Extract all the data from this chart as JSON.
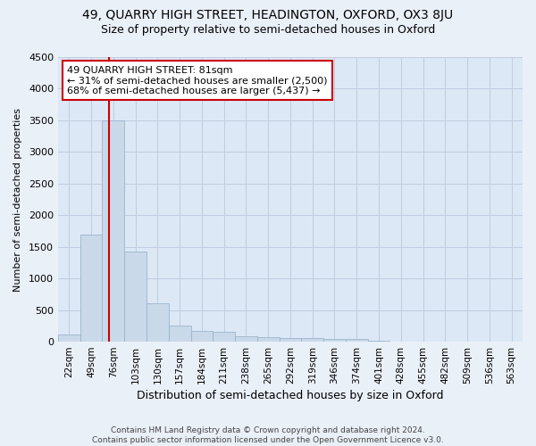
{
  "title1": "49, QUARRY HIGH STREET, HEADINGTON, OXFORD, OX3 8JU",
  "title2": "Size of property relative to semi-detached houses in Oxford",
  "xlabel": "Distribution of semi-detached houses by size in Oxford",
  "ylabel": "Number of semi-detached properties",
  "footer1": "Contains HM Land Registry data © Crown copyright and database right 2024.",
  "footer2": "Contains public sector information licensed under the Open Government Licence v3.0.",
  "annotation_line1": "49 QUARRY HIGH STREET: 81sqm",
  "annotation_line2": "← 31% of semi-detached houses are smaller (2,500)",
  "annotation_line3": "68% of semi-detached houses are larger (5,437) →",
  "bar_color": "#c9d9ea",
  "bar_edge_color": "#9ab4cc",
  "grid_color": "#c0cce0",
  "background_color": "#eaf0f8",
  "plot_bg_color": "#dce8f5",
  "red_line_color": "#cc0000",
  "annotation_box_color": "#ffffff",
  "annotation_box_edge": "#cc0000",
  "categories": [
    "22sqm",
    "49sqm",
    "76sqm",
    "103sqm",
    "130sqm",
    "157sqm",
    "184sqm",
    "211sqm",
    "238sqm",
    "265sqm",
    "292sqm",
    "319sqm",
    "346sqm",
    "374sqm",
    "401sqm",
    "428sqm",
    "455sqm",
    "482sqm",
    "509sqm",
    "536sqm",
    "563sqm"
  ],
  "values": [
    120,
    1700,
    3500,
    1430,
    610,
    255,
    175,
    150,
    90,
    75,
    60,
    55,
    45,
    45,
    10,
    5,
    4,
    3,
    2,
    2,
    2
  ],
  "ylim": [
    0,
    4500
  ],
  "yticks": [
    0,
    500,
    1000,
    1500,
    2000,
    2500,
    3000,
    3500,
    4000,
    4500
  ],
  "red_line_x": 1.82
}
